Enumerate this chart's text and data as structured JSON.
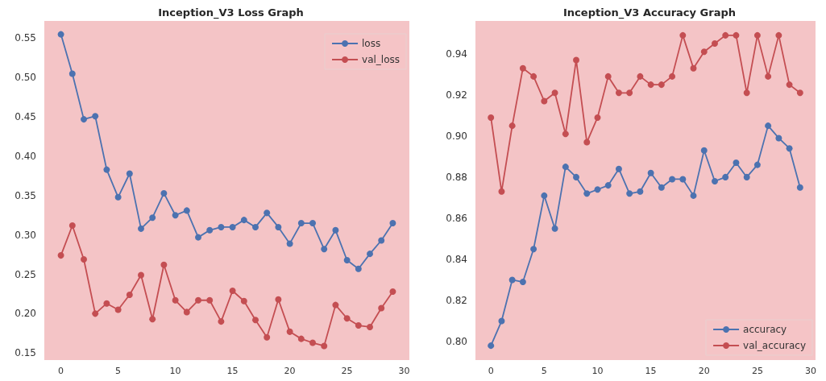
{
  "chart_data": [
    {
      "type": "line",
      "title": "Inception_V3 Loss Graph",
      "x": [
        0,
        1,
        2,
        3,
        4,
        5,
        6,
        7,
        8,
        9,
        10,
        11,
        12,
        13,
        14,
        15,
        16,
        17,
        18,
        19,
        20,
        21,
        22,
        23,
        24,
        25,
        26,
        27,
        28,
        29
      ],
      "series": [
        {
          "name": "loss",
          "color": "#4c72b0",
          "values": [
            0.555,
            0.505,
            0.447,
            0.451,
            0.383,
            0.348,
            0.378,
            0.308,
            0.322,
            0.353,
            0.325,
            0.331,
            0.297,
            0.306,
            0.31,
            0.31,
            0.319,
            0.31,
            0.328,
            0.31,
            0.289,
            0.315,
            0.315,
            0.282,
            0.306,
            0.268,
            0.257,
            0.276,
            0.293,
            0.315
          ]
        },
        {
          "name": "val_loss",
          "color": "#c44e52",
          "values": [
            0.274,
            0.312,
            0.269,
            0.2,
            0.213,
            0.205,
            0.224,
            0.249,
            0.193,
            0.262,
            0.217,
            0.202,
            0.217,
            0.217,
            0.19,
            0.229,
            0.216,
            0.192,
            0.17,
            0.218,
            0.177,
            0.168,
            0.163,
            0.159,
            0.211,
            0.194,
            0.185,
            0.183,
            0.207,
            0.228
          ]
        }
      ],
      "xlim": [
        -1.45,
        30.45
      ],
      "xticks": [
        0,
        5,
        10,
        15,
        20,
        25,
        30
      ],
      "ylim": [
        0.141,
        0.572
      ],
      "yticks": [
        0.15,
        {
          "value": 0.2,
          "label": "0.20"
        },
        0.25,
        {
          "value": 0.3,
          "label": "0.30"
        },
        0.35,
        {
          "value": 0.4,
          "label": "0.40"
        },
        0.45,
        {
          "value": 0.5,
          "label": "0.50"
        },
        0.55
      ],
      "legend": "top right",
      "marker": "circle",
      "grid": false
    },
    {
      "type": "line",
      "title": "Inception_V3 Accuracy Graph",
      "x": [
        0,
        1,
        2,
        3,
        4,
        5,
        6,
        7,
        8,
        9,
        10,
        11,
        12,
        13,
        14,
        15,
        16,
        17,
        18,
        19,
        20,
        21,
        22,
        23,
        24,
        25,
        26,
        27,
        28,
        29
      ],
      "series": [
        {
          "name": "accuracy",
          "color": "#4c72b0",
          "values": [
            0.798,
            0.81,
            0.83,
            0.829,
            0.845,
            0.871,
            0.855,
            0.885,
            0.88,
            0.872,
            0.874,
            0.876,
            0.884,
            0.872,
            0.873,
            0.882,
            0.875,
            0.879,
            0.879,
            0.871,
            0.893,
            0.878,
            0.88,
            0.887,
            0.88,
            0.886,
            0.905,
            0.899,
            0.894,
            0.875
          ]
        },
        {
          "name": "val_accuracy",
          "color": "#c44e52",
          "values": [
            0.909,
            0.873,
            0.905,
            0.933,
            0.929,
            0.917,
            0.921,
            0.901,
            0.937,
            0.897,
            0.909,
            0.929,
            0.921,
            0.921,
            0.929,
            0.925,
            0.925,
            0.929,
            0.949,
            0.933,
            0.941,
            0.945,
            0.949,
            0.949,
            0.921,
            0.949,
            0.929,
            0.949,
            0.925,
            0.921
          ]
        }
      ],
      "xlim": [
        -1.45,
        30.45
      ],
      "xticks": [
        0,
        5,
        10,
        15,
        20,
        25,
        30
      ],
      "ylim": [
        0.791,
        0.956
      ],
      "yticks": [
        {
          "value": 0.8,
          "label": "0.80"
        },
        0.82,
        0.84,
        0.86,
        0.88,
        {
          "value": 0.9,
          "label": "0.90"
        },
        0.92,
        0.94
      ],
      "legend": "bottom right",
      "marker": "circle",
      "grid": false
    }
  ]
}
